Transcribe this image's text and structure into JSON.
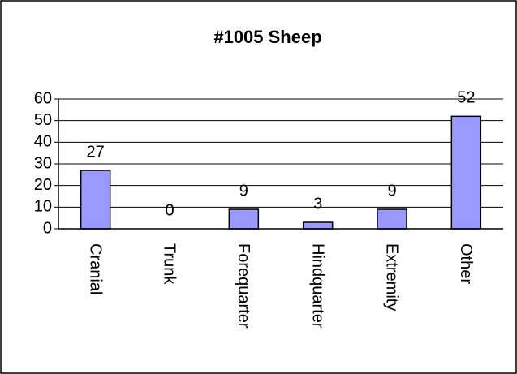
{
  "chart_data": {
    "type": "bar",
    "title": "#1005 Sheep",
    "categories": [
      "Cranial",
      "Trunk",
      "Forequarter",
      "Hindquarter",
      "Extremity",
      "Other"
    ],
    "values": [
      27,
      0,
      9,
      3,
      9,
      52
    ],
    "color": "#9999ff",
    "ylim": [
      0,
      60
    ],
    "yticks": [
      0,
      10,
      20,
      30,
      40,
      50,
      60
    ],
    "grid": true
  }
}
